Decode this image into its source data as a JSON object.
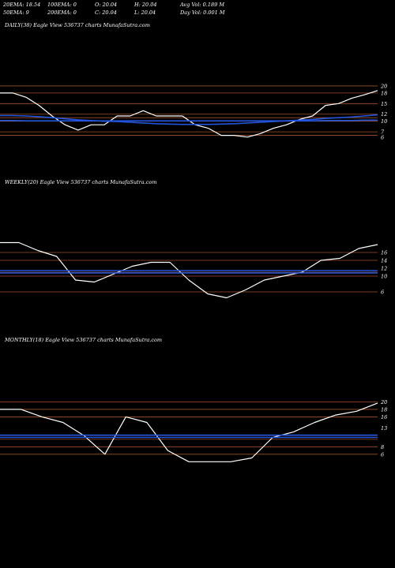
{
  "header": {
    "row1": [
      "20EMA: 18.54",
      "100EMA: 0",
      "O: 20.04",
      "H: 20.04",
      "Avg Vol: 0.189 M"
    ],
    "row2": [
      "50EMA: 9",
      "200EMA: 0",
      "C: 20.04",
      "L: 20.04",
      "Day Vol: 0.001 M"
    ]
  },
  "colors": {
    "background": "#000000",
    "price": "#ffffff",
    "ema": "#2255dd",
    "level": "#a0522d"
  },
  "chart_data": [
    {
      "type": "line",
      "label": "DAILY(38) Eagle  View  536737 charts MunafaSutra.com",
      "ylim": [
        3,
        22
      ],
      "levels": [
        20,
        18,
        15,
        12,
        11,
        10,
        7,
        6
      ],
      "tick_labels": [
        "20",
        "18",
        "15",
        "12",
        "10",
        "7",
        "6"
      ],
      "series": [
        {
          "role": "price",
          "values": [
            18,
            18,
            16.8,
            14.5,
            11.5,
            9,
            7.5,
            9,
            9,
            11.5,
            11.5,
            13,
            11.5,
            11.5,
            11.5,
            9,
            8,
            6,
            6,
            5.5,
            6.5,
            8,
            9,
            10.5,
            11.5,
            14.5,
            15,
            16.5,
            17.5,
            18.7
          ]
        },
        {
          "role": "ema",
          "values": [
            11.6,
            11.6,
            11.5,
            11.3,
            11,
            10.7,
            10.4,
            10.2,
            10,
            9.9,
            9.7,
            9.5,
            9.3,
            9.2,
            9.1,
            9.1,
            9.1,
            9.2,
            9.3,
            9.5,
            9.7,
            9.9,
            10.1,
            10.3,
            10.5,
            10.8,
            11,
            11.2,
            11.5,
            11.8
          ]
        },
        {
          "role": "ema",
          "values": [
            10.2,
            10.2,
            10.1,
            10.1,
            10.1,
            10.1,
            10.1,
            10.1,
            10.1,
            10.1,
            10.1,
            10.1,
            10.1,
            10.1,
            10.1,
            10.1,
            10.1,
            10.1,
            10.1,
            10.1,
            10.1,
            10.1,
            10.1,
            10.1,
            10.1,
            10.2,
            10.2,
            10.2,
            10.3,
            10.3
          ]
        }
      ]
    },
    {
      "type": "line",
      "label": "WEEKLY(20) Eagle  View  536737 charts MunafaSutra.com",
      "ylim": [
        3,
        20
      ],
      "levels": [
        16,
        14,
        11,
        10,
        6
      ],
      "tick_labels": [
        "16",
        "14",
        "12",
        "10",
        "6"
      ],
      "series": [
        {
          "role": "price",
          "values": [
            18.5,
            18.5,
            16.5,
            15,
            9,
            8.5,
            10.5,
            12.5,
            13.5,
            13.5,
            9,
            5.5,
            4.5,
            6.5,
            9,
            10,
            11,
            14,
            14.5,
            17,
            18
          ]
        },
        {
          "role": "ema",
          "values": [
            11.4,
            11.4,
            11.4,
            11.4,
            11.4,
            11.4,
            11.4,
            11.4,
            11.4,
            11.4,
            11.4,
            11.4,
            11.4,
            11.4,
            11.4,
            11.4,
            11.4,
            11.4,
            11.4,
            11.4,
            11.4
          ]
        },
        {
          "role": "ema",
          "values": [
            10.8,
            10.8,
            10.8,
            10.8,
            10.8,
            10.8,
            10.8,
            10.8,
            10.8,
            10.8,
            10.8,
            10.8,
            10.8,
            10.8,
            10.8,
            10.8,
            10.8,
            10.8,
            10.8,
            10.8,
            10.8
          ]
        }
      ]
    },
    {
      "type": "line",
      "label": "MONTHLY(18) Eagle  View  536737 charts MunafaSutra.com",
      "ylim": [
        3,
        22
      ],
      "levels": [
        20,
        18,
        16,
        11,
        10,
        8,
        6
      ],
      "tick_labels": [
        "20",
        "18",
        "16",
        "13",
        "8",
        "6"
      ],
      "series": [
        {
          "role": "price",
          "values": [
            18,
            18,
            16,
            14.5,
            11,
            6,
            16,
            14.5,
            7,
            4,
            4,
            4,
            5,
            10.5,
            12,
            14.5,
            16.5,
            17.5,
            19.7
          ]
        },
        {
          "role": "ema",
          "values": [
            11.1,
            11.1,
            11.1,
            11.1,
            11.1,
            11.1,
            11.1,
            11.1,
            11.1,
            11.1,
            11.1,
            11.1,
            11.1,
            11.1,
            11.1,
            11.1,
            11.1,
            11.1,
            11.1
          ]
        },
        {
          "role": "ema",
          "values": [
            10.5,
            10.5,
            10.5,
            10.5,
            10.5,
            10.5,
            10.5,
            10.5,
            10.5,
            10.5,
            10.5,
            10.5,
            10.5,
            10.5,
            10.5,
            10.5,
            10.5,
            10.5,
            10.5
          ]
        }
      ]
    }
  ]
}
